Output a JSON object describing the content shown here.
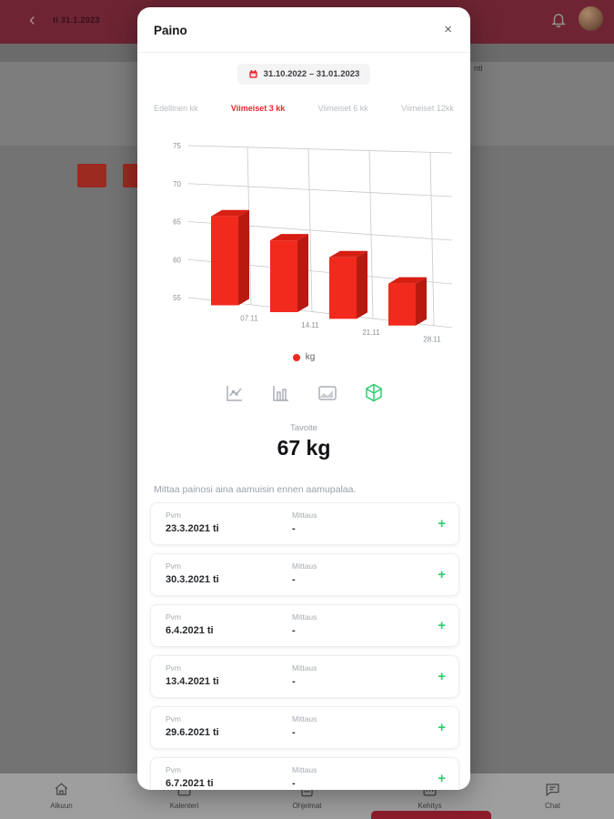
{
  "topbar": {
    "date": "ti 31.1.2023"
  },
  "backdrop": {
    "partial_text": "nti"
  },
  "modal": {
    "title": "Paino",
    "close_label": "×",
    "date_range": "31.10.2022 – 31.01.2023",
    "tabs": [
      {
        "label": "Edellinen kk"
      },
      {
        "label": "Viimeiset 3 kk"
      },
      {
        "label": "Viimeiset 6 kk"
      },
      {
        "label": "Viimeiset 12kk"
      }
    ],
    "active_tab": "Viimeiset 3 kk",
    "chart_types": [
      "line-chart",
      "bar-chart",
      "area-chart",
      "cube-3d"
    ],
    "selected_chart_type": "cube-3d",
    "goal_label": "Tavoite",
    "goal_value": "67 kg",
    "description": "Mittaa painosi aina aamuisin ennen aamupalaa.",
    "entries": [
      {
        "date_label": "Pvm",
        "date": "23.3.2021 ti",
        "measure_label": "Mittaus",
        "measure": "-",
        "add": "+"
      },
      {
        "date_label": "Pvm",
        "date": "30.3.2021 ti",
        "measure_label": "Mittaus",
        "measure": "-",
        "add": "+"
      },
      {
        "date_label": "Pvm",
        "date": "6.4.2021 ti",
        "measure_label": "Mittaus",
        "measure": "-",
        "add": "+"
      },
      {
        "date_label": "Pvm",
        "date": "13.4.2021 ti",
        "measure_label": "Mittaus",
        "measure": "-",
        "add": "+"
      },
      {
        "date_label": "Pvm",
        "date": "29.6.2021 ti",
        "measure_label": "Mittaus",
        "measure": "-",
        "add": "+"
      },
      {
        "date_label": "Pvm",
        "date": "6.7.2021 ti",
        "measure_label": "Mittaus",
        "measure": "-",
        "add": "+"
      }
    ]
  },
  "chart_data": {
    "type": "bar",
    "style": "3d",
    "title": "",
    "categories": [
      "07.11",
      "14.11",
      "21.11",
      "28.11"
    ],
    "values": [
      66,
      63.5,
      62,
      59.5
    ],
    "series_name": "kg",
    "ylim": [
      55,
      75
    ],
    "yticks": [
      75,
      70,
      65,
      60,
      55
    ],
    "grid": true,
    "legend_position": "bottom",
    "bar_color": "#f2291d",
    "bar_color_top": "#d71e13",
    "bar_color_side": "#b81a10"
  },
  "bottom_nav": {
    "items": [
      {
        "label": "Alkuun",
        "icon": "home"
      },
      {
        "label": "Kalenteri",
        "icon": "calendar"
      },
      {
        "label": "Ohjelmat",
        "icon": "clipboard"
      },
      {
        "label": "Kehitys",
        "icon": "chart"
      },
      {
        "label": "Chat",
        "icon": "chat"
      }
    ],
    "active_item": "Kehitys"
  },
  "colors": {
    "accent_red": "#e8252c",
    "green": "#2ecc71",
    "topbar_red": "#6e2433",
    "nav_indicator": "#8c1c2b"
  }
}
